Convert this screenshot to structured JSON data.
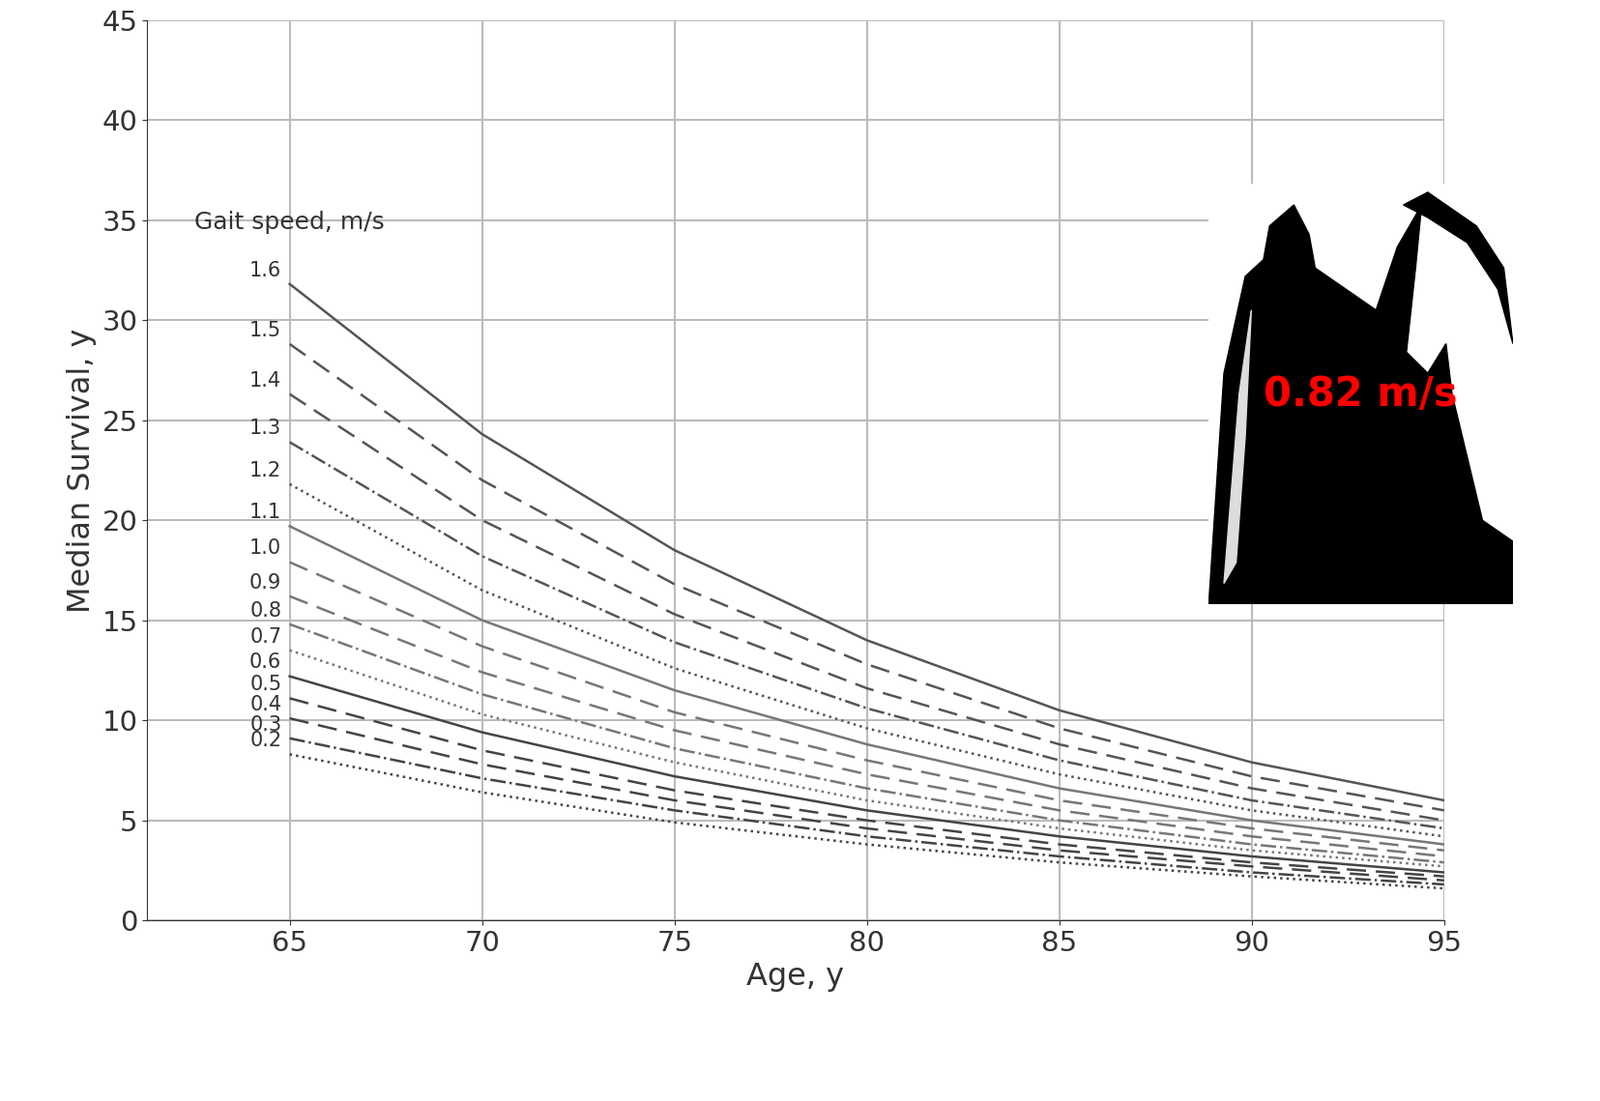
{
  "chart_data": {
    "type": "line",
    "x_label": "Age, y",
    "y_label": "Median Survival, y",
    "annotations": [
      {
        "text": "Gait speed, m/s",
        "color": "#333333"
      },
      {
        "text": "0.82 m/s",
        "color": "#ff0000"
      }
    ],
    "x": [
      65,
      70,
      75,
      80,
      85,
      90,
      95
    ],
    "xlim": [
      61.3,
      95
    ],
    "xticks": [
      65,
      70,
      75,
      80,
      85,
      90,
      95
    ],
    "ylim": [
      0,
      45
    ],
    "yticks": [
      0,
      5,
      10,
      15,
      20,
      25,
      30,
      35,
      40,
      45
    ],
    "grid": true,
    "series": [
      {
        "name": "1.6",
        "color": "#555555",
        "line_style": "solid",
        "values": [
          31.8,
          24.3,
          18.5,
          14.0,
          10.5,
          7.9,
          6.0
        ]
      },
      {
        "name": "1.5",
        "color": "#555555",
        "line_style": "dashed",
        "values": [
          28.8,
          22.0,
          16.8,
          12.8,
          9.6,
          7.2,
          5.5
        ]
      },
      {
        "name": "1.4",
        "color": "#555555",
        "line_style": "dashed",
        "values": [
          26.3,
          20.0,
          15.3,
          11.6,
          8.8,
          6.6,
          5.0
        ]
      },
      {
        "name": "1.3",
        "color": "#555555",
        "line_style": "dashdot",
        "values": [
          23.9,
          18.2,
          13.9,
          10.6,
          8.0,
          6.0,
          4.6
        ]
      },
      {
        "name": "1.2",
        "color": "#555555",
        "line_style": "dotted",
        "values": [
          21.8,
          16.5,
          12.6,
          9.6,
          7.3,
          5.5,
          4.2
        ]
      },
      {
        "name": "1.1",
        "color": "#777777",
        "line_style": "solid",
        "values": [
          19.7,
          15.0,
          11.5,
          8.8,
          6.6,
          5.0,
          3.8
        ]
      },
      {
        "name": "1.0",
        "color": "#777777",
        "line_style": "dashed",
        "values": [
          17.9,
          13.7,
          10.4,
          8.0,
          6.0,
          4.6,
          3.5
        ]
      },
      {
        "name": "0.9",
        "color": "#777777",
        "line_style": "dashed",
        "values": [
          16.2,
          12.4,
          9.5,
          7.3,
          5.5,
          4.2,
          3.2
        ]
      },
      {
        "name": "0.8",
        "color": "#777777",
        "line_style": "dashdot",
        "values": [
          14.8,
          11.3,
          8.6,
          6.6,
          5.0,
          3.8,
          2.9
        ]
      },
      {
        "name": "0.7",
        "color": "#777777",
        "line_style": "dotted",
        "values": [
          13.5,
          10.3,
          7.9,
          6.0,
          4.6,
          3.5,
          2.7
        ]
      },
      {
        "name": "0.6",
        "color": "#444444",
        "line_style": "solid",
        "values": [
          12.2,
          9.4,
          7.2,
          5.5,
          4.2,
          3.2,
          2.4
        ]
      },
      {
        "name": "0.5",
        "color": "#444444",
        "line_style": "dashed",
        "values": [
          11.1,
          8.5,
          6.5,
          5.0,
          3.8,
          2.9,
          2.2
        ]
      },
      {
        "name": "0.4",
        "color": "#444444",
        "line_style": "dashed",
        "values": [
          10.1,
          7.8,
          6.0,
          4.6,
          3.5,
          2.7,
          2.0
        ]
      },
      {
        "name": "0.3",
        "color": "#444444",
        "line_style": "dashdot",
        "values": [
          9.1,
          7.1,
          5.5,
          4.2,
          3.2,
          2.4,
          1.8
        ]
      },
      {
        "name": "0.2",
        "color": "#444444",
        "line_style": "dotted",
        "values": [
          8.3,
          6.4,
          4.9,
          3.8,
          2.9,
          2.2,
          1.6
        ]
      }
    ]
  }
}
